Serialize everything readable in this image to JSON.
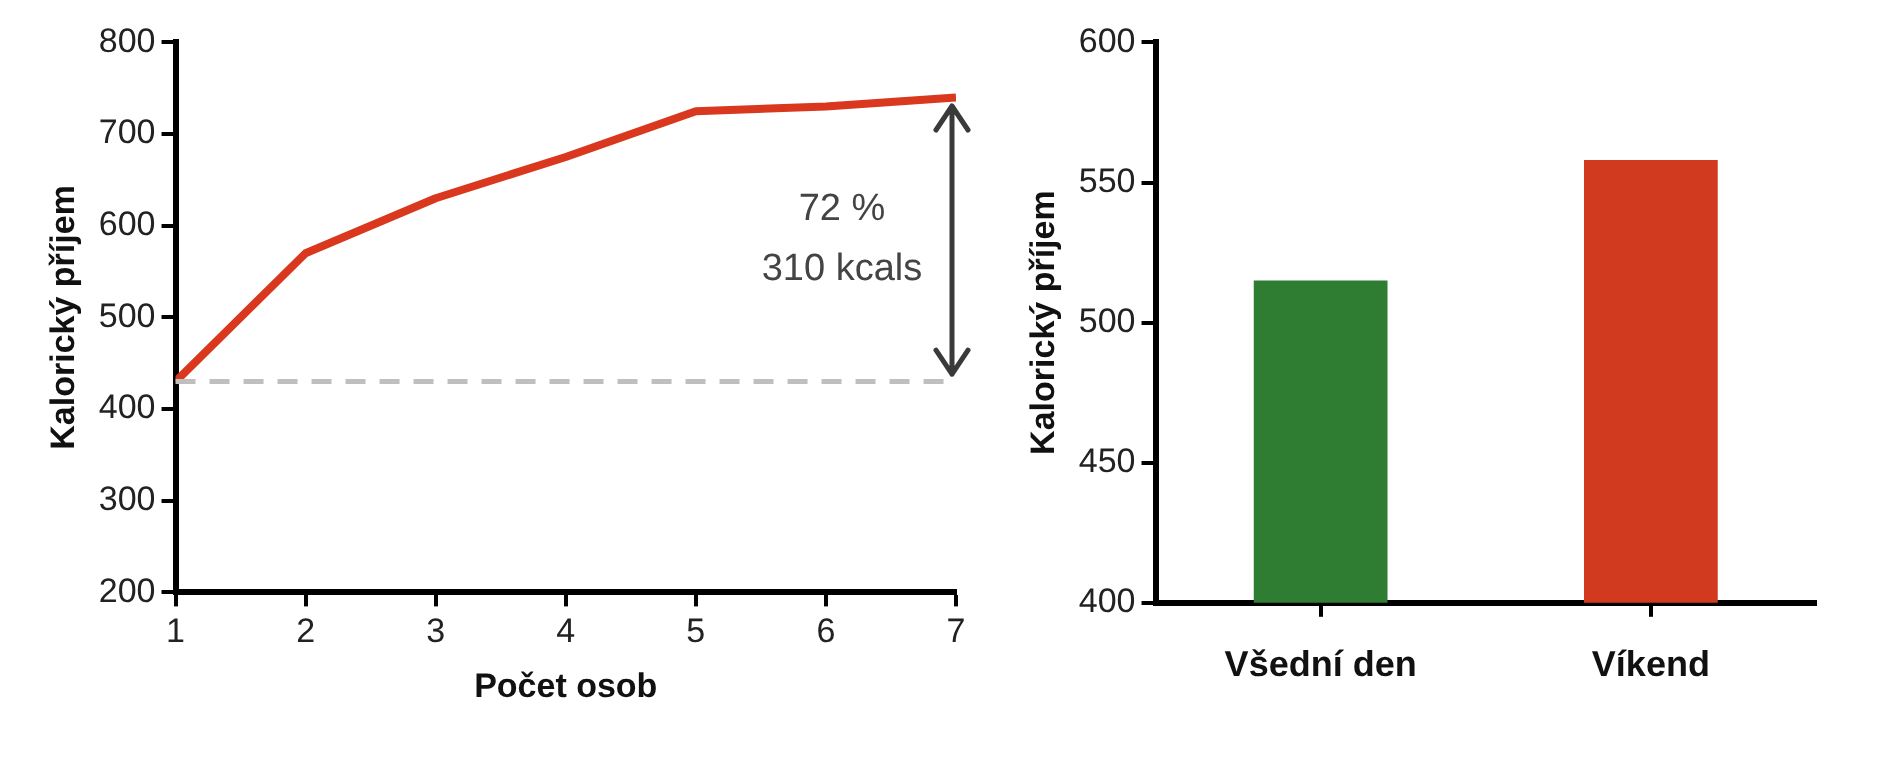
{
  "chart_data": [
    {
      "type": "line",
      "x": [
        1,
        2,
        3,
        4,
        5,
        6,
        7
      ],
      "xlim": [
        1,
        7
      ],
      "xticks": [
        1,
        2,
        3,
        4,
        5,
        6,
        7
      ],
      "ylim": [
        200,
        800
      ],
      "yticks": [
        200,
        300,
        400,
        500,
        600,
        700,
        800
      ],
      "xlabel": "Počet osob",
      "ylabel": "Kalorický příjem",
      "grid": false,
      "marker": "none",
      "series": [
        {
          "color": "#d9381e",
          "values": [
            430,
            570,
            630,
            675,
            725,
            730,
            740
          ]
        }
      ],
      "ref_lines": [
        {
          "axis": "y",
          "value": 430,
          "color": "#bfbfbf",
          "line_style": "dashed"
        }
      ],
      "annotations": [
        "72 %",
        "310 kcals"
      ]
    },
    {
      "type": "bar",
      "categories": [
        "Všední den",
        "Víkend"
      ],
      "values": [
        515,
        558
      ],
      "colors": [
        "#2e7d32",
        "#d13a1f"
      ],
      "ylim": [
        400,
        600
      ],
      "yticks": [
        400,
        450,
        500,
        550,
        600
      ],
      "ylabel": "Kalorický příjem",
      "grid": false
    }
  ]
}
